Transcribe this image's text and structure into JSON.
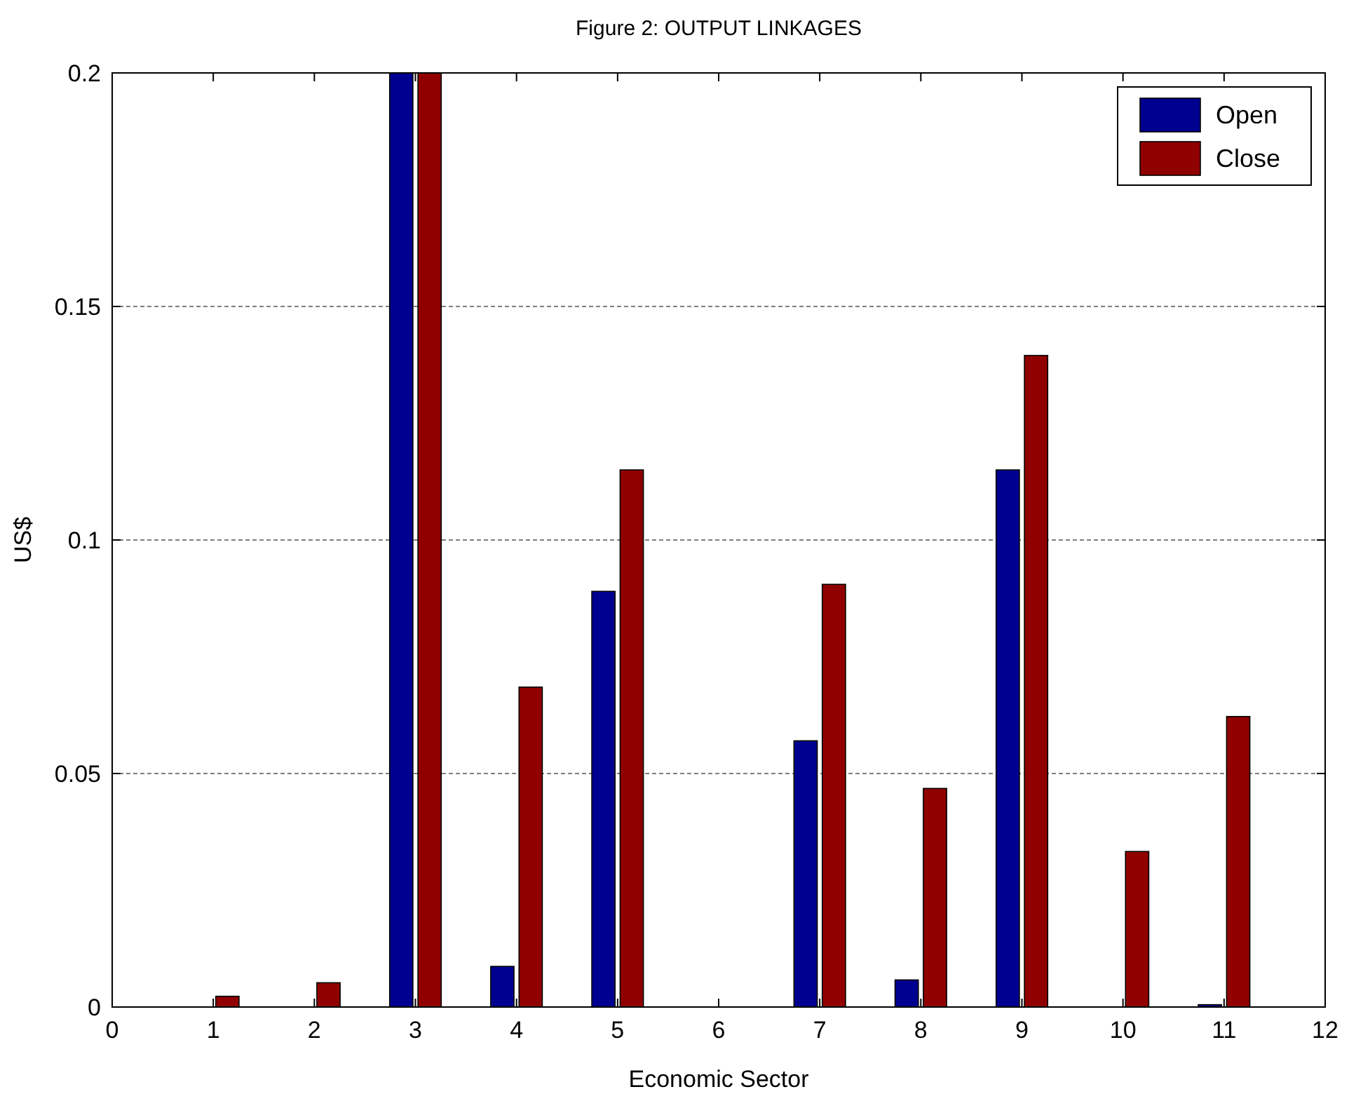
{
  "chart_data": {
    "type": "bar",
    "title": "Figure 2: OUTPUT LINKAGES",
    "xlabel": "Economic Sector",
    "ylabel": "US$",
    "x": [
      1,
      2,
      3,
      4,
      5,
      6,
      7,
      8,
      9,
      10,
      11
    ],
    "series": [
      {
        "name": "Open",
        "color": "#000090",
        "values": [
          0,
          0,
          0.2,
          0.0087,
          0.089,
          0,
          0.057,
          0.0058,
          0.115,
          0,
          0.0005
        ]
      },
      {
        "name": "Close",
        "color": "#900000",
        "values": [
          0.0023,
          0.0052,
          0.2,
          0.0685,
          0.115,
          0,
          0.0905,
          0.0468,
          0.1395,
          0.0333,
          0.0622
        ]
      }
    ],
    "xlim": [
      0,
      12
    ],
    "xticks": [
      0,
      1,
      2,
      3,
      4,
      5,
      6,
      7,
      8,
      9,
      10,
      11,
      12
    ],
    "ylim": [
      0,
      0.2
    ],
    "yticks": [
      0,
      0.05,
      0.1,
      0.15,
      0.2
    ],
    "grid": "y",
    "legend": "top right"
  }
}
